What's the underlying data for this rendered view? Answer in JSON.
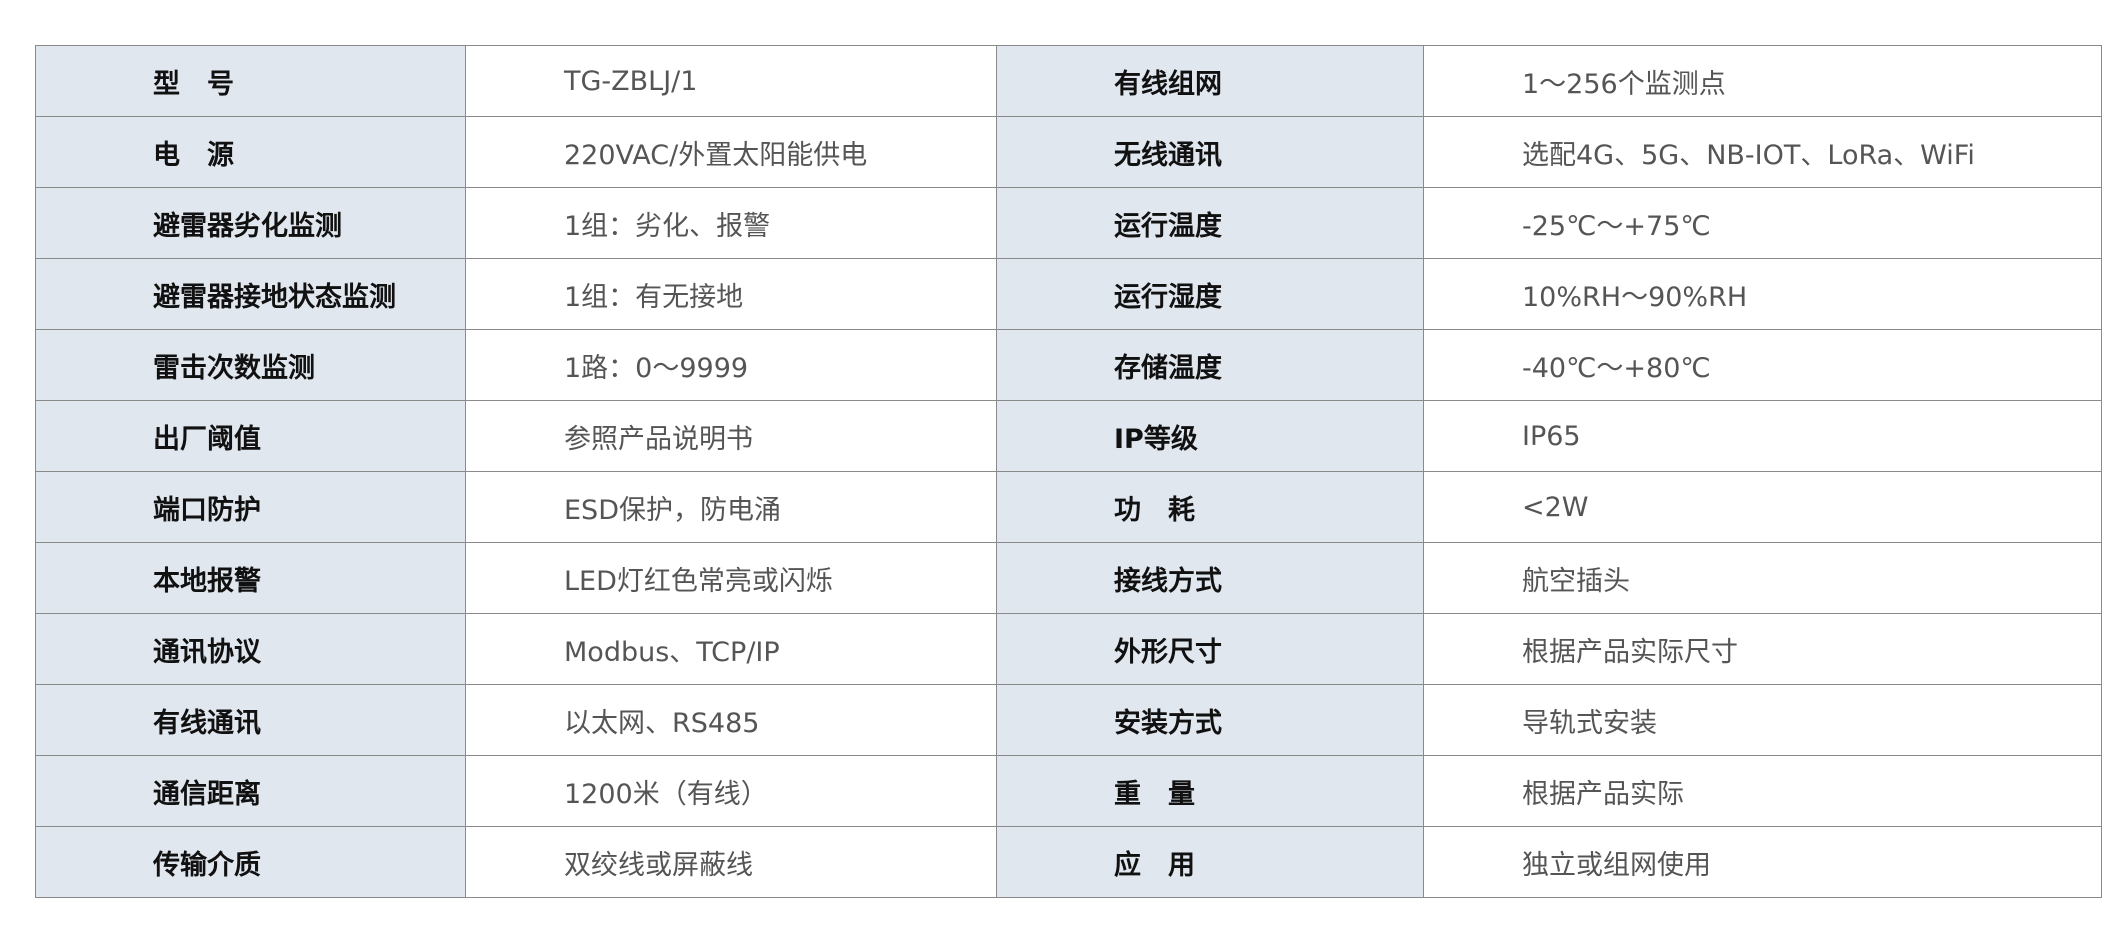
{
  "rows": [
    {
      "k1": "型　号",
      "v1": "TG-ZBLJ/1",
      "k2": "有线组网",
      "v2": "1～256个监测点"
    },
    {
      "k1": "电　源",
      "v1": "220VAC/外置太阳能供电",
      "k2": "无线通讯",
      "v2": "选配4G、5G、NB-IOT、LoRa、WiFi"
    },
    {
      "k1": "避雷器劣化监测",
      "v1": "1组：劣化、报警",
      "k2": "运行温度",
      "v2": "-25℃～+75℃"
    },
    {
      "k1": "避雷器接地状态监测",
      "v1": "1组：有无接地",
      "k2": "运行湿度",
      "v2": "10%RH～90%RH"
    },
    {
      "k1": "雷击次数监测",
      "v1": "1路：0～9999",
      "k2": "存储温度",
      "v2": "-40℃～+80℃"
    },
    {
      "k1": "出厂阈值",
      "v1": "参照产品说明书",
      "k2": "IP等级",
      "v2": "IP65"
    },
    {
      "k1": "端口防护",
      "v1": "ESD保护，防电涌",
      "k2": "功　耗",
      "v2": "<2W"
    },
    {
      "k1": "本地报警",
      "v1": "LED灯红色常亮或闪烁",
      "k2": "接线方式",
      "v2": "航空插头"
    },
    {
      "k1": "通讯协议",
      "v1": "Modbus、TCP/IP",
      "k2": "外形尺寸",
      "v2": "根据产品实际尺寸"
    },
    {
      "k1": "有线通讯",
      "v1": "以太网、RS485",
      "k2": "安装方式",
      "v2": "导轨式安装"
    },
    {
      "k1": "通信距离",
      "v1": "1200米（有线）",
      "k2": "重　量",
      "v2": "根据产品实际"
    },
    {
      "k1": "传输介质",
      "v1": "双绞线或屏蔽线",
      "k2": "应　用",
      "v2": "独立或组网使用"
    }
  ]
}
